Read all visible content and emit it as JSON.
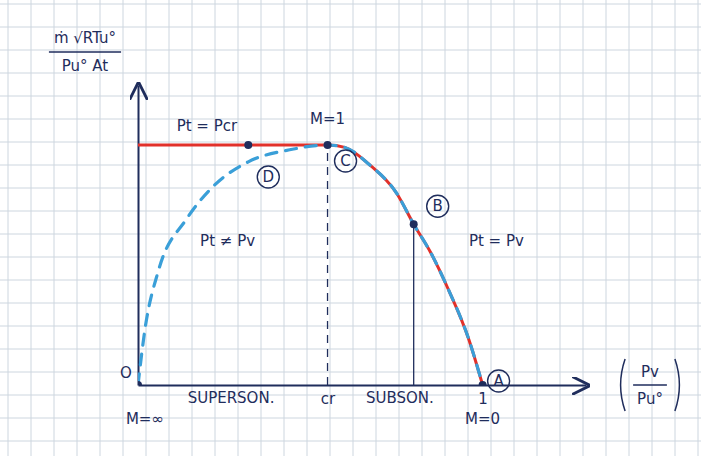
{
  "chart_data": {
    "type": "line",
    "ylabel": {
      "numerator": "ṁ √RTu°",
      "denominator": "Pu° At"
    },
    "xlabel": {
      "numerator": "Pv",
      "denominator": "Pu°"
    },
    "xlim": [
      0,
      1.3
    ],
    "ylim": [
      0,
      1.25
    ],
    "xticks": [
      {
        "value": 0.55,
        "label": "cr"
      },
      1
    ],
    "yticks": [],
    "tick_labels": "x",
    "series": [
      {
        "color": "#e2312a",
        "line_style": "solid",
        "x": [
          0,
          0.55,
          0.6,
          0.67,
          0.75,
          0.8,
          0.85,
          0.9,
          0.96,
          1
        ],
        "values": [
          1,
          1,
          0.99,
          0.92,
          0.8,
          0.67,
          0.55,
          0.4,
          0.19,
          0
        ]
      },
      {
        "color": "#3a9fd8",
        "line_style": "dashed",
        "x": [
          0,
          0.02,
          0.06,
          0.14,
          0.22,
          0.32,
          0.44,
          0.55,
          0.6,
          0.67,
          0.75,
          0.8,
          0.85,
          0.9,
          0.96,
          1
        ],
        "values": [
          0,
          0.23,
          0.48,
          0.69,
          0.83,
          0.93,
          0.98,
          1,
          0.99,
          0.92,
          0.8,
          0.67,
          0.55,
          0.4,
          0.19,
          0
        ]
      }
    ],
    "points": [
      {
        "label": "A",
        "x": 1,
        "y": 0,
        "marker": "circle"
      },
      {
        "label": "B",
        "x": 0.8,
        "y": 0.67,
        "marker": "circle",
        "line_style": "solid"
      },
      {
        "label": "C",
        "x": 0.55,
        "y": 1,
        "marker": "circle",
        "line_style": "dashed"
      },
      {
        "label": "D",
        "x": 0.32,
        "y": 1,
        "marker": "circle"
      },
      {
        "label": "O",
        "x": 0,
        "y": 0,
        "marker": "none"
      }
    ],
    "annotations": [
      {
        "text": "M=1",
        "x": 0.55,
        "y": 1.11
      },
      {
        "text": "Pt = Pcr",
        "x": 0.2,
        "y": 1.08
      },
      {
        "text": "Pt ≠ Pv",
        "x": 0.26,
        "y": 0.6
      },
      {
        "text": "Pt = Pv",
        "x": 1.04,
        "y": 0.6
      },
      {
        "text": "M=∞",
        "x": 0.02,
        "y": -0.14
      },
      {
        "text": "M=0",
        "x": 1,
        "y": -0.14
      },
      {
        "text": "SUPERSON.",
        "x": 0.27,
        "y": -0.055
      },
      {
        "text": "SUBSON.",
        "x": 0.76,
        "y": -0.055
      }
    ]
  }
}
